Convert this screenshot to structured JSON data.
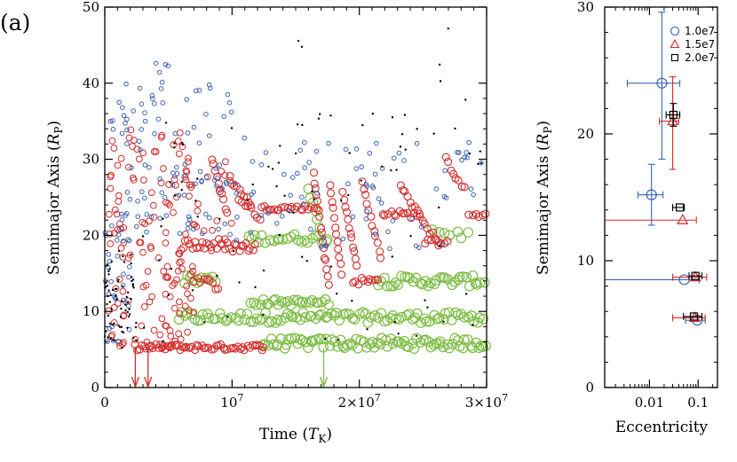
{
  "panel_label": "(a)",
  "colors": {
    "blue": "#3b62b0",
    "red": "#d42a2a",
    "green": "#7bbd42",
    "black": "#000000",
    "axis": "#000000"
  },
  "chart_data": [
    {
      "type": "scatter",
      "xlabel_main": "Time (",
      "xlabel_sym": "T",
      "xlabel_sub": "K",
      "xlabel_close": ")",
      "ylabel_main": "Semimajor Axis (",
      "ylabel_sym": "R",
      "ylabel_sub": "P",
      "ylabel_close": ")",
      "xlim": [
        0,
        30000000
      ],
      "ylim": [
        0,
        50
      ],
      "xticks": [
        {
          "value": 0,
          "label": "0"
        },
        {
          "value": 10000000,
          "label": "10",
          "sup": "7"
        },
        {
          "value": 20000000,
          "label": "2×10",
          "sup": "7"
        },
        {
          "value": 30000000,
          "label": "3×10",
          "sup": "7"
        }
      ],
      "yticks": [
        0,
        10,
        20,
        30,
        40,
        50
      ],
      "arrows": [
        {
          "x": 2400000,
          "color": "red"
        },
        {
          "x": 3400000,
          "color": "red"
        },
        {
          "x": 17200000,
          "color": "green"
        }
      ],
      "series": [
        {
          "color": "green",
          "kind": "circle",
          "r": 5.2,
          "strokeWidth": 1.2,
          "segments": [
            {
              "x0": 5800000,
              "x1": 30000000,
              "y0": 9.2,
              "y1": 9.2,
              "n": 100,
              "jitter": 0.7
            },
            {
              "x0": 12400000,
              "x1": 30000000,
              "y0": 5.8,
              "y1": 5.8,
              "n": 85,
              "jitter": 0.7
            },
            {
              "x0": 6200000,
              "x1": 8800000,
              "y0": 14.2,
              "y1": 14.2,
              "n": 10,
              "jitter": 0.6
            },
            {
              "x0": 11500000,
              "x1": 17500000,
              "y0": 11.2,
              "y1": 11.2,
              "n": 26,
              "jitter": 0.4
            },
            {
              "x0": 11300000,
              "x1": 17600000,
              "y0": 19.6,
              "y1": 19.6,
              "n": 24,
              "jitter": 0.6
            },
            {
              "x0": 21500000,
              "x1": 30000000,
              "y0": 14.0,
              "y1": 14.0,
              "n": 38,
              "jitter": 0.7
            },
            {
              "x0": 25800000,
              "x1": 28500000,
              "y0": 20.6,
              "y1": 20.0,
              "n": 7,
              "jitter": 0.6
            },
            {
              "x0": 16000000,
              "x1": 16900000,
              "y0": 26.0,
              "y1": 21.0,
              "n": 6,
              "jitter": 0.3
            }
          ]
        },
        {
          "color": "red",
          "kind": "circle",
          "r": 4.0,
          "strokeWidth": 1.1,
          "segments": [
            {
              "x0": 2300000,
              "x1": 12500000,
              "y0": 5.3,
              "y1": 5.3,
              "n": 55,
              "jitter": 0.4
            },
            {
              "x0": 6000000,
              "x1": 9500000,
              "y0": 18.8,
              "y1": 18.8,
              "n": 20,
              "jitter": 0.8
            },
            {
              "x0": 9500000,
              "x1": 11800000,
              "y0": 18.5,
              "y1": 18.5,
              "n": 14,
              "jitter": 0.7
            },
            {
              "x0": 12300000,
              "x1": 16600000,
              "y0": 23.6,
              "y1": 23.6,
              "n": 22,
              "jitter": 0.3
            },
            {
              "x0": 19500000,
              "x1": 21500000,
              "y0": 14.0,
              "y1": 14.0,
              "n": 10,
              "jitter": 0.5
            },
            {
              "x0": 21800000,
              "x1": 24700000,
              "y0": 23.0,
              "y1": 22.6,
              "n": 14,
              "jitter": 0.4
            },
            {
              "x0": 25200000,
              "x1": 27000000,
              "y0": 19.2,
              "y1": 19.2,
              "n": 8,
              "jitter": 0.4
            },
            {
              "x0": 28600000,
              "x1": 30000000,
              "y0": 22.8,
              "y1": 22.6,
              "n": 6,
              "jitter": 0.3
            },
            {
              "x0": 6800000,
              "x1": 8900000,
              "y0": 14.5,
              "y1": 13.2,
              "n": 10,
              "jitter": 0.5
            },
            {
              "x0": 10500000,
              "x1": 12200000,
              "y0": 25.0,
              "y1": 22.0,
              "n": 8,
              "jitter": 0.4
            },
            {
              "x0": 16400000,
              "x1": 17600000,
              "y0": 28.0,
              "y1": 13.5,
              "n": 16,
              "jitter": 0.4
            },
            {
              "x0": 17700000,
              "x1": 18600000,
              "y0": 26.5,
              "y1": 15.0,
              "n": 12,
              "jitter": 0.3
            },
            {
              "x0": 18700000,
              "x1": 19800000,
              "y0": 25.5,
              "y1": 16.0,
              "n": 12,
              "jitter": 0.3
            },
            {
              "x0": 20200000,
              "x1": 21700000,
              "y0": 27.0,
              "y1": 17.0,
              "n": 12,
              "jitter": 0.3
            },
            {
              "x0": 23200000,
              "x1": 26200000,
              "y0": 26.5,
              "y1": 19.0,
              "n": 16,
              "jitter": 0.4
            },
            {
              "x0": 26800000,
              "x1": 28200000,
              "y0": 30.0,
              "y1": 26.0,
              "n": 8,
              "jitter": 0.4
            },
            {
              "x0": 8400000,
              "x1": 9600000,
              "y0": 30.0,
              "y1": 23.0,
              "n": 10,
              "jitter": 0.4
            },
            {
              "x0": 9800000,
              "x1": 11500000,
              "y0": 27.5,
              "y1": 24.0,
              "n": 10,
              "jitter": 0.4
            }
          ]
        },
        {
          "color": "red",
          "kind": "circle",
          "r": 3.4,
          "strokeWidth": 1.0,
          "clouds": [
            {
              "x0": 200000,
              "x1": 7000000,
              "y0": 5,
              "y1": 34,
              "n": 150
            },
            {
              "x0": 7000000,
              "x1": 10000000,
              "y0": 17,
              "y1": 31,
              "n": 15
            }
          ]
        },
        {
          "color": "blue",
          "kind": "circle",
          "r": 2.3,
          "strokeWidth": 1.0,
          "clouds": [
            {
              "x0": 0,
              "x1": 10000000,
              "y0": 20,
              "y1": 40,
              "n": 100
            },
            {
              "x0": 0,
              "x1": 2000000,
              "y0": 6,
              "y1": 22,
              "n": 30
            },
            {
              "x0": 10000000,
              "x1": 30000000,
              "y0": 18,
              "y1": 33,
              "n": 80
            },
            {
              "x0": 4000000,
              "x1": 5000000,
              "y0": 40,
              "y1": 43,
              "n": 5
            }
          ]
        },
        {
          "color": "black",
          "kind": "dot",
          "r": 1.2,
          "clouds": [
            {
              "x0": 0,
              "x1": 2500000,
              "y0": 5,
              "y1": 18,
              "n": 70
            },
            {
              "x0": 3000000,
              "x1": 30000000,
              "y0": 6,
              "y1": 36,
              "n": 90
            },
            {
              "x0": 15000000,
              "x1": 30000000,
              "y0": 36,
              "y1": 48,
              "n": 6
            }
          ]
        }
      ]
    },
    {
      "type": "scatter",
      "xlabel": "Eccentricity",
      "ylabel_main": "Semimajor Axis (",
      "ylabel_sym": "R",
      "ylabel_sub": "P",
      "ylabel_close": ")",
      "xscale": "log",
      "xlim": [
        0.0012,
        0.25
      ],
      "ylim": [
        0,
        30
      ],
      "xticks": [
        {
          "value": 0.01,
          "label": "0.01"
        },
        {
          "value": 0.1,
          "label": "0.1"
        }
      ],
      "yticks": [
        0,
        10,
        20,
        30
      ],
      "legend": {
        "placement": "top-right",
        "entries": [
          {
            "name": "1.0e7",
            "color": "blue",
            "marker": "circle"
          },
          {
            "name": "1.5e7",
            "color": "red",
            "marker": "triangle"
          },
          {
            "name": "2.0e7",
            "color": "black",
            "marker": "square"
          }
        ]
      },
      "series": [
        {
          "name": "1.0e7",
          "color": "blue",
          "marker": "circle",
          "points": [
            {
              "x": 0.018,
              "y": 24.0,
              "xerr": [
                0.0035,
                0.042
              ],
              "yerr": [
                18.0,
                29.6
              ]
            },
            {
              "x": 0.011,
              "y": 15.2,
              "xerr": [
                0.0058,
                0.019
              ],
              "yerr": [
                12.8,
                17.6
              ]
            },
            {
              "x": 0.052,
              "y": 8.5,
              "xerr": [
                0.0012,
                0.105
              ],
              "yerr": null
            },
            {
              "x": 0.096,
              "y": 5.3,
              "xerr": [
                0.055,
                0.14
              ],
              "yerr": null
            }
          ]
        },
        {
          "name": "1.5e7",
          "color": "red",
          "marker": "triangle",
          "points": [
            {
              "x": 0.03,
              "y": 21.0,
              "xerr": [
                0.016,
                0.04
              ],
              "yerr": [
                17.2,
                24.5
              ]
            },
            {
              "x": 0.048,
              "y": 13.2,
              "xerr": [
                0.0012,
                0.092
              ],
              "yerr": null
            },
            {
              "x": 0.088,
              "y": 8.7,
              "xerr": [
                0.03,
                0.15
              ],
              "yerr": null
            },
            {
              "x": 0.085,
              "y": 5.5,
              "xerr": [
                0.03,
                0.14
              ],
              "yerr": null
            }
          ]
        },
        {
          "name": "2.0e7",
          "color": "black",
          "marker": "square",
          "points": [
            {
              "x": 0.031,
              "y": 21.5,
              "xerr": [
                0.022,
                0.042
              ],
              "yerr": [
                20.6,
                22.4
              ]
            },
            {
              "x": 0.042,
              "y": 14.2,
              "xerr": [
                0.03,
                0.052
              ],
              "yerr": null
            },
            {
              "x": 0.088,
              "y": 8.8,
              "xerr": [
                0.065,
                0.12
              ],
              "yerr": null
            },
            {
              "x": 0.082,
              "y": 5.6,
              "xerr": [
                0.05,
                0.12
              ],
              "yerr": null
            }
          ]
        }
      ]
    }
  ]
}
